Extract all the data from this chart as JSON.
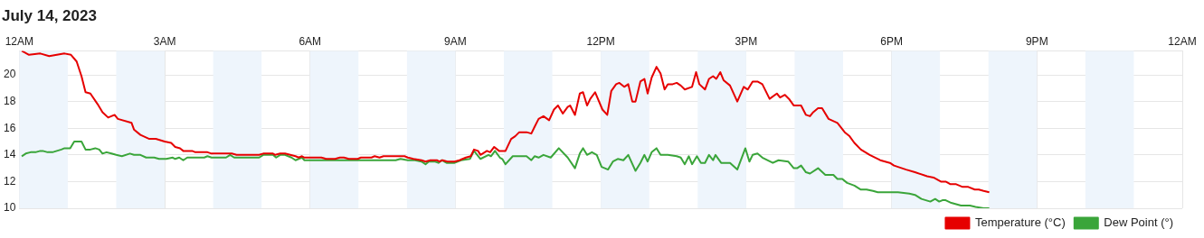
{
  "chart_data": {
    "type": "line",
    "title": "July 14, 2023",
    "xlim": [
      "2023-07-14T00:00",
      "2023-07-15T00:00"
    ],
    "xticks": [
      {
        "value": "2023-07-14T00:00",
        "label": "12AM"
      },
      {
        "value": "2023-07-14T03:00",
        "label": "3AM"
      },
      {
        "value": "2023-07-14T06:00",
        "label": "6AM"
      },
      {
        "value": "2023-07-14T09:00",
        "label": "9AM"
      },
      {
        "value": "2023-07-14T12:00",
        "label": "12PM"
      },
      {
        "value": "2023-07-14T15:00",
        "label": "3PM"
      },
      {
        "value": "2023-07-14T18:00",
        "label": "6PM"
      },
      {
        "value": "2023-07-14T21:00",
        "label": "9PM"
      },
      {
        "value": "2023-07-15T00:00",
        "label": "12AM"
      }
    ],
    "ylim": [
      10,
      21.8
    ],
    "yticks": [
      10,
      12,
      14,
      16,
      18,
      20
    ],
    "grid": true,
    "legend": "bottom right",
    "marker": "none",
    "line_style": "solid",
    "bands": [
      {
        "axis": "x",
        "from": "2023-07-14T00:00",
        "to": "2023-07-14T01:00",
        "color": "#eef5fc"
      },
      {
        "axis": "x",
        "from": "2023-07-14T02:00",
        "to": "2023-07-14T03:00",
        "color": "#eef5fc"
      },
      {
        "axis": "x",
        "from": "2023-07-14T04:00",
        "to": "2023-07-14T05:00",
        "color": "#eef5fc"
      },
      {
        "axis": "x",
        "from": "2023-07-14T06:00",
        "to": "2023-07-14T07:00",
        "color": "#eef5fc"
      },
      {
        "axis": "x",
        "from": "2023-07-14T08:00",
        "to": "2023-07-14T09:00",
        "color": "#eef5fc"
      },
      {
        "axis": "x",
        "from": "2023-07-14T10:00",
        "to": "2023-07-14T11:00",
        "color": "#eef5fc"
      },
      {
        "axis": "x",
        "from": "2023-07-14T12:00",
        "to": "2023-07-14T13:00",
        "color": "#eef5fc"
      },
      {
        "axis": "x",
        "from": "2023-07-14T14:00",
        "to": "2023-07-14T15:00",
        "color": "#eef5fc"
      },
      {
        "axis": "x",
        "from": "2023-07-14T16:00",
        "to": "2023-07-14T17:00",
        "color": "#eef5fc"
      },
      {
        "axis": "x",
        "from": "2023-07-14T18:00",
        "to": "2023-07-14T19:00",
        "color": "#eef5fc"
      },
      {
        "axis": "x",
        "from": "2023-07-14T20:00",
        "to": "2023-07-14T21:00",
        "color": "#eef5fc"
      },
      {
        "axis": "x",
        "from": "2023-07-14T22:00",
        "to": "2023-07-14T23:00",
        "color": "#eef5fc"
      }
    ],
    "series": [
      {
        "name": "Temperature (°C)",
        "color": "#e60000",
        "x": [
          "2023-07-14T00:03",
          "2023-07-14T00:12",
          "2023-07-14T00:26",
          "2023-07-14T00:37",
          "2023-07-14T00:56",
          "2023-07-14T01:04",
          "2023-07-14T01:11",
          "2023-07-14T01:17",
          "2023-07-14T01:22",
          "2023-07-14T01:28",
          "2023-07-14T01:37",
          "2023-07-14T01:43",
          "2023-07-14T01:50",
          "2023-07-14T01:58",
          "2023-07-14T02:02",
          "2023-07-14T02:19",
          "2023-07-14T02:22",
          "2023-07-14T02:30",
          "2023-07-14T02:41",
          "2023-07-14T02:49",
          "2023-07-14T03:00",
          "2023-07-14T03:08",
          "2023-07-14T03:13",
          "2023-07-14T03:19",
          "2023-07-14T03:23",
          "2023-07-14T03:34",
          "2023-07-14T03:38",
          "2023-07-14T03:53",
          "2023-07-14T03:58",
          "2023-07-14T04:23",
          "2023-07-14T04:29",
          "2023-07-14T04:57",
          "2023-07-14T05:02",
          "2023-07-14T05:14",
          "2023-07-14T05:17",
          "2023-07-14T05:23",
          "2023-07-14T05:29",
          "2023-07-14T05:42",
          "2023-07-14T05:46",
          "2023-07-14T05:50",
          "2023-07-14T05:53",
          "2023-07-14T06:14",
          "2023-07-14T06:20",
          "2023-07-14T06:31",
          "2023-07-14T06:37",
          "2023-07-14T06:42",
          "2023-07-14T06:48",
          "2023-07-14T06:59",
          "2023-07-14T07:03",
          "2023-07-14T07:16",
          "2023-07-14T07:20",
          "2023-07-14T07:26",
          "2023-07-14T07:31",
          "2023-07-14T07:46",
          "2023-07-14T07:52",
          "2023-07-14T07:57",
          "2023-07-14T08:01",
          "2023-07-14T08:08",
          "2023-07-14T08:18",
          "2023-07-14T08:23",
          "2023-07-14T08:29",
          "2023-07-14T08:37",
          "2023-07-14T08:40",
          "2023-07-14T08:44",
          "2023-07-14T08:50",
          "2023-07-14T08:59",
          "2023-07-14T09:05",
          "2023-07-14T09:13",
          "2023-07-14T09:19",
          "2023-07-14T09:23",
          "2023-07-14T09:28",
          "2023-07-14T09:31",
          "2023-07-14T09:39",
          "2023-07-14T09:43",
          "2023-07-14T09:48",
          "2023-07-14T09:54",
          "2023-07-14T10:02",
          "2023-07-14T10:09",
          "2023-07-14T10:14",
          "2023-07-14T10:19",
          "2023-07-14T10:28",
          "2023-07-14T10:34",
          "2023-07-14T10:38",
          "2023-07-14T10:43",
          "2023-07-14T10:49",
          "2023-07-14T10:56",
          "2023-07-14T11:02",
          "2023-07-14T11:07",
          "2023-07-14T11:13",
          "2023-07-14T11:19",
          "2023-07-14T11:22",
          "2023-07-14T11:28",
          "2023-07-14T11:34",
          "2023-07-14T11:38",
          "2023-07-14T11:43",
          "2023-07-14T11:47",
          "2023-07-14T11:53",
          "2023-07-14T12:02",
          "2023-07-14T12:08",
          "2023-07-14T12:13",
          "2023-07-14T12:19",
          "2023-07-14T12:23",
          "2023-07-14T12:29",
          "2023-07-14T12:34",
          "2023-07-14T12:39",
          "2023-07-14T12:43",
          "2023-07-14T12:49",
          "2023-07-14T12:54",
          "2023-07-14T12:58",
          "2023-07-14T13:03",
          "2023-07-14T13:09",
          "2023-07-14T13:14",
          "2023-07-14T13:19",
          "2023-07-14T13:23",
          "2023-07-14T13:29",
          "2023-07-14T13:34",
          "2023-07-14T13:39",
          "2023-07-14T13:44",
          "2023-07-14T13:53",
          "2023-07-14T13:58",
          "2023-07-14T14:02",
          "2023-07-14T14:09",
          "2023-07-14T14:14",
          "2023-07-14T14:19",
          "2023-07-14T14:23",
          "2023-07-14T14:28",
          "2023-07-14T14:32",
          "2023-07-14T14:40",
          "2023-07-14T14:49",
          "2023-07-14T14:57",
          "2023-07-14T15:02",
          "2023-07-14T15:08",
          "2023-07-14T15:14",
          "2023-07-14T15:20",
          "2023-07-14T15:29",
          "2023-07-14T15:38",
          "2023-07-14T15:42",
          "2023-07-14T15:48",
          "2023-07-14T15:53",
          "2023-07-14T15:59",
          "2023-07-14T16:03",
          "2023-07-14T16:08",
          "2023-07-14T16:14",
          "2023-07-14T16:19",
          "2023-07-14T16:23",
          "2023-07-14T16:29",
          "2023-07-14T16:34",
          "2023-07-14T16:42",
          "2023-07-14T16:53",
          "2023-07-14T17:02",
          "2023-07-14T17:08",
          "2023-07-14T17:14",
          "2023-07-14T17:22",
          "2023-07-14T17:33",
          "2023-07-14T17:46",
          "2023-07-14T17:58",
          "2023-07-14T18:03",
          "2023-07-14T18:18",
          "2023-07-14T18:29",
          "2023-07-14T18:44",
          "2023-07-14T18:52",
          "2023-07-14T19:01",
          "2023-07-14T19:07",
          "2023-07-14T19:13",
          "2023-07-14T19:20",
          "2023-07-14T19:28",
          "2023-07-14T19:35",
          "2023-07-14T19:43",
          "2023-07-14T19:48",
          "2023-07-14T19:54",
          "2023-07-14T20:01"
        ],
        "values": [
          21.8,
          21.5,
          21.6,
          21.4,
          21.6,
          21.5,
          21.0,
          19.9,
          18.7,
          18.6,
          17.8,
          17.2,
          16.8,
          17.0,
          16.7,
          16.4,
          15.9,
          15.5,
          15.2,
          15.2,
          15.0,
          14.9,
          14.6,
          14.5,
          14.3,
          14.3,
          14.2,
          14.2,
          14.1,
          14.1,
          14.0,
          14.0,
          14.1,
          14.1,
          14.0,
          14.1,
          14.1,
          13.9,
          13.8,
          13.9,
          13.8,
          13.8,
          13.7,
          13.7,
          13.8,
          13.8,
          13.7,
          13.7,
          13.8,
          13.8,
          13.9,
          13.8,
          13.9,
          13.9,
          13.9,
          13.9,
          13.8,
          13.7,
          13.6,
          13.5,
          13.6,
          13.6,
          13.5,
          13.6,
          13.5,
          13.5,
          13.6,
          13.8,
          13.9,
          14.4,
          14.3,
          14.0,
          14.3,
          14.2,
          14.6,
          14.3,
          14.3,
          15.2,
          15.4,
          15.7,
          15.7,
          15.6,
          16.1,
          16.7,
          16.9,
          16.6,
          17.4,
          17.7,
          17.1,
          17.6,
          17.7,
          17.0,
          18.6,
          18.7,
          17.7,
          18.2,
          18.7,
          17.4,
          17.0,
          18.8,
          19.3,
          19.4,
          19.1,
          19.3,
          18.0,
          18.0,
          19.5,
          19.7,
          18.6,
          19.8,
          20.6,
          20.1,
          18.9,
          19.3,
          19.3,
          19.4,
          19.2,
          18.9,
          19.1,
          20.2,
          19.3,
          18.9,
          19.7,
          19.9,
          19.7,
          20.2,
          19.6,
          19.2,
          18.0,
          19.1,
          18.9,
          19.5,
          19.5,
          19.3,
          18.2,
          18.6,
          18.3,
          18.5,
          18.2,
          17.7,
          17.7,
          17.7,
          17.0,
          16.9,
          17.2,
          17.5,
          17.5,
          16.7,
          16.4,
          15.7,
          15.4,
          14.9,
          14.4,
          14.0,
          13.6,
          13.4,
          13.2,
          12.9,
          12.7,
          12.4,
          12.3,
          12.0,
          12.0,
          11.8,
          11.8,
          11.6,
          11.6,
          11.4,
          11.4,
          11.3,
          11.2
        ]
      },
      {
        "name": "Dew Point (°)",
        "color": "#3aa53a",
        "x": [
          "2023-07-14T00:03",
          "2023-07-14T00:08",
          "2023-07-14T00:14",
          "2023-07-14T00:20",
          "2023-07-14T00:26",
          "2023-07-14T00:29",
          "2023-07-14T00:35",
          "2023-07-14T00:41",
          "2023-07-14T00:52",
          "2023-07-14T00:56",
          "2023-07-14T01:03",
          "2023-07-14T01:08",
          "2023-07-14T01:17",
          "2023-07-14T01:22",
          "2023-07-14T01:28",
          "2023-07-14T01:34",
          "2023-07-14T01:39",
          "2023-07-14T01:43",
          "2023-07-14T01:48",
          "2023-07-14T01:54",
          "2023-07-14T02:00",
          "2023-07-14T02:07",
          "2023-07-14T02:17",
          "2023-07-14T02:22",
          "2023-07-14T02:30",
          "2023-07-14T02:37",
          "2023-07-14T02:47",
          "2023-07-14T02:53",
          "2023-07-14T03:02",
          "2023-07-14T03:10",
          "2023-07-14T03:13",
          "2023-07-14T03:18",
          "2023-07-14T03:23",
          "2023-07-14T03:28",
          "2023-07-14T03:49",
          "2023-07-14T03:53",
          "2023-07-14T03:58",
          "2023-07-14T04:16",
          "2023-07-14T04:21",
          "2023-07-14T04:26",
          "2023-07-14T04:57",
          "2023-07-14T05:02",
          "2023-07-14T05:14",
          "2023-07-14T05:18",
          "2023-07-14T05:23",
          "2023-07-14T05:29",
          "2023-07-14T05:37",
          "2023-07-14T05:42",
          "2023-07-14T05:50",
          "2023-07-14T05:53",
          "2023-07-14T06:58",
          "2023-07-14T07:03",
          "2023-07-14T07:07",
          "2023-07-14T07:46",
          "2023-07-14T07:52",
          "2023-07-14T08:01",
          "2023-07-14T08:10",
          "2023-07-14T08:18",
          "2023-07-14T08:23",
          "2023-07-14T08:27",
          "2023-07-14T08:35",
          "2023-07-14T08:39",
          "2023-07-14T08:43",
          "2023-07-14T08:49",
          "2023-07-14T08:59",
          "2023-07-14T09:07",
          "2023-07-14T09:18",
          "2023-07-14T09:23",
          "2023-07-14T09:31",
          "2023-07-14T09:41",
          "2023-07-14T09:44",
          "2023-07-14T09:49",
          "2023-07-14T09:55",
          "2023-07-14T09:58",
          "2023-07-14T10:02",
          "2023-07-14T10:11",
          "2023-07-14T10:14",
          "2023-07-14T10:28",
          "2023-07-14T10:34",
          "2023-07-14T10:38",
          "2023-07-14T10:43",
          "2023-07-14T10:49",
          "2023-07-14T10:58",
          "2023-07-14T11:08",
          "2023-07-14T11:19",
          "2023-07-14T11:28",
          "2023-07-14T11:34",
          "2023-07-14T11:38",
          "2023-07-14T11:43",
          "2023-07-14T11:49",
          "2023-07-14T11:55",
          "2023-07-14T12:01",
          "2023-07-14T12:09",
          "2023-07-14T12:15",
          "2023-07-14T12:21",
          "2023-07-14T12:28",
          "2023-07-14T12:34",
          "2023-07-14T12:43",
          "2023-07-14T12:49",
          "2023-07-14T12:54",
          "2023-07-14T12:58",
          "2023-07-14T13:03",
          "2023-07-14T13:09",
          "2023-07-14T13:14",
          "2023-07-14T13:23",
          "2023-07-14T13:34",
          "2023-07-14T13:39",
          "2023-07-14T13:44",
          "2023-07-14T13:49",
          "2023-07-14T13:53",
          "2023-07-14T13:59",
          "2023-07-14T14:04",
          "2023-07-14T14:09",
          "2023-07-14T14:14",
          "2023-07-14T14:19",
          "2023-07-14T14:22",
          "2023-07-14T14:29",
          "2023-07-14T14:40",
          "2023-07-14T14:49",
          "2023-07-14T14:59",
          "2023-07-14T15:04",
          "2023-07-14T15:08",
          "2023-07-14T15:14",
          "2023-07-14T15:20",
          "2023-07-14T15:33",
          "2023-07-14T15:40",
          "2023-07-14T15:52",
          "2023-07-14T15:59",
          "2023-07-14T16:03",
          "2023-07-14T16:08",
          "2023-07-14T16:14",
          "2023-07-14T16:19",
          "2023-07-14T16:29",
          "2023-07-14T16:38",
          "2023-07-14T16:48",
          "2023-07-14T16:53",
          "2023-07-14T16:59",
          "2023-07-14T17:05",
          "2023-07-14T17:14",
          "2023-07-14T17:22",
          "2023-07-14T17:29",
          "2023-07-14T17:37",
          "2023-07-14T17:43",
          "2023-07-14T18:08",
          "2023-07-14T18:22",
          "2023-07-14T18:29",
          "2023-07-14T18:37",
          "2023-07-14T18:48",
          "2023-07-14T18:54",
          "2023-07-14T18:59",
          "2023-07-14T19:03",
          "2023-07-14T19:07",
          "2023-07-14T19:14",
          "2023-07-14T19:26",
          "2023-07-14T19:37",
          "2023-07-14T19:44",
          "2023-07-14T19:54",
          "2023-07-14T20:01"
        ],
        "values": [
          13.9,
          14.1,
          14.2,
          14.2,
          14.3,
          14.3,
          14.2,
          14.2,
          14.4,
          14.5,
          14.5,
          15.0,
          15.0,
          14.4,
          14.4,
          14.5,
          14.4,
          14.1,
          14.2,
          14.1,
          14.0,
          13.9,
          14.1,
          14.0,
          14.0,
          13.8,
          13.8,
          13.7,
          13.7,
          13.8,
          13.7,
          13.8,
          13.6,
          13.8,
          13.8,
          13.9,
          13.8,
          13.8,
          14.0,
          13.8,
          13.8,
          14.0,
          14.0,
          13.8,
          14.0,
          14.0,
          13.8,
          13.6,
          13.8,
          13.6,
          13.6,
          13.6,
          13.6,
          13.6,
          13.7,
          13.6,
          13.6,
          13.5,
          13.3,
          13.5,
          13.5,
          13.4,
          13.6,
          13.4,
          13.4,
          13.6,
          13.7,
          14.3,
          13.7,
          14.0,
          13.9,
          14.3,
          13.8,
          13.7,
          13.3,
          13.9,
          13.9,
          13.9,
          13.6,
          13.9,
          13.8,
          14.0,
          13.8,
          14.5,
          13.8,
          13.0,
          14.1,
          14.5,
          14.0,
          14.2,
          14.0,
          13.1,
          12.9,
          13.5,
          13.7,
          13.6,
          14.0,
          12.8,
          13.4,
          14.0,
          13.5,
          14.2,
          14.5,
          14.0,
          14.0,
          13.9,
          13.8,
          13.3,
          13.9,
          13.3,
          13.9,
          13.4,
          13.4,
          14.0,
          13.6,
          14.0,
          13.4,
          13.4,
          12.9,
          14.5,
          13.5,
          14.0,
          14.1,
          13.8,
          13.4,
          13.6,
          13.5,
          13.0,
          13.0,
          13.2,
          12.7,
          12.6,
          13.0,
          12.5,
          12.5,
          12.2,
          12.2,
          11.9,
          11.7,
          11.4,
          11.4,
          11.3,
          11.2,
          11.2,
          11.1,
          11.0,
          10.7,
          10.5,
          10.7,
          10.5,
          10.6,
          10.6,
          10.4,
          10.2,
          10.2,
          10.1,
          10.0,
          10.0
        ]
      }
    ]
  }
}
